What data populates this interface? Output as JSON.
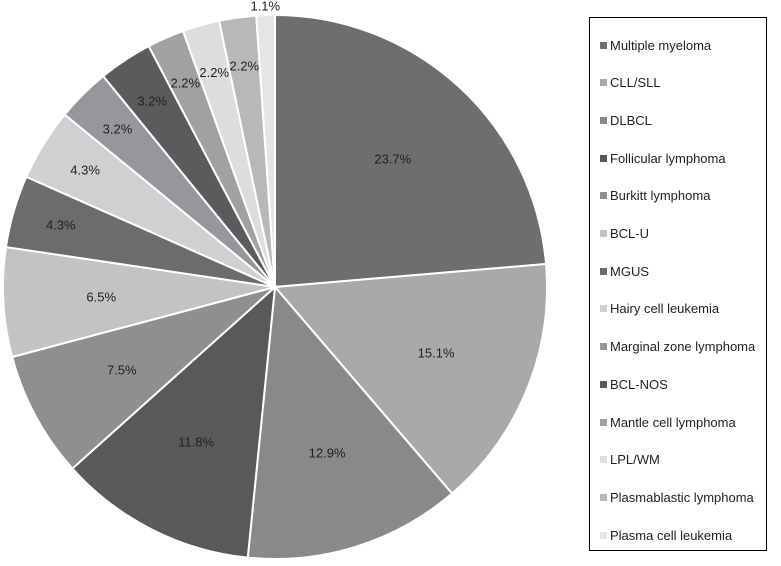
{
  "chart_data": {
    "type": "pie",
    "title": "",
    "categories": [
      "Multiple myeloma",
      "CLL/SLL",
      "DLBCL",
      "Follicular lymphoma",
      "Burkitt lymphoma",
      "BCL-U",
      "MGUS",
      "Hairy cell leukemia",
      "Marginal zone lymphoma",
      "BCL-NOS",
      "Mantle cell lymphoma",
      "LPL/WM",
      "Plasmablastic lymphoma",
      "Plasma cell leukemia"
    ],
    "values": [
      23.7,
      15.1,
      12.9,
      11.8,
      7.5,
      6.5,
      4.3,
      4.3,
      3.2,
      3.2,
      2.2,
      2.2,
      2.2,
      1.1
    ],
    "labels": [
      "23.7%",
      "15.1%",
      "12.9%",
      "11.8%",
      "7.5%",
      "6.5%",
      "4.3%",
      "4.3%",
      "3.2%",
      "3.2%",
      "2.2%",
      "2.2%",
      "2.2%",
      "1.1%"
    ],
    "colors": [
      "#6e6e70",
      "#a8a9ab",
      "#88898b",
      "#59595b",
      "#8e8f91",
      "#c2c3c5",
      "#6b6c6e",
      "#cfd0d2",
      "#96979a",
      "#5a5b5d",
      "#a0a1a3",
      "#dcdddf",
      "#b7b8ba",
      "#e4e5e7"
    ],
    "start_angle_deg": 0,
    "direction": "clockwise",
    "legend_position": "right"
  }
}
